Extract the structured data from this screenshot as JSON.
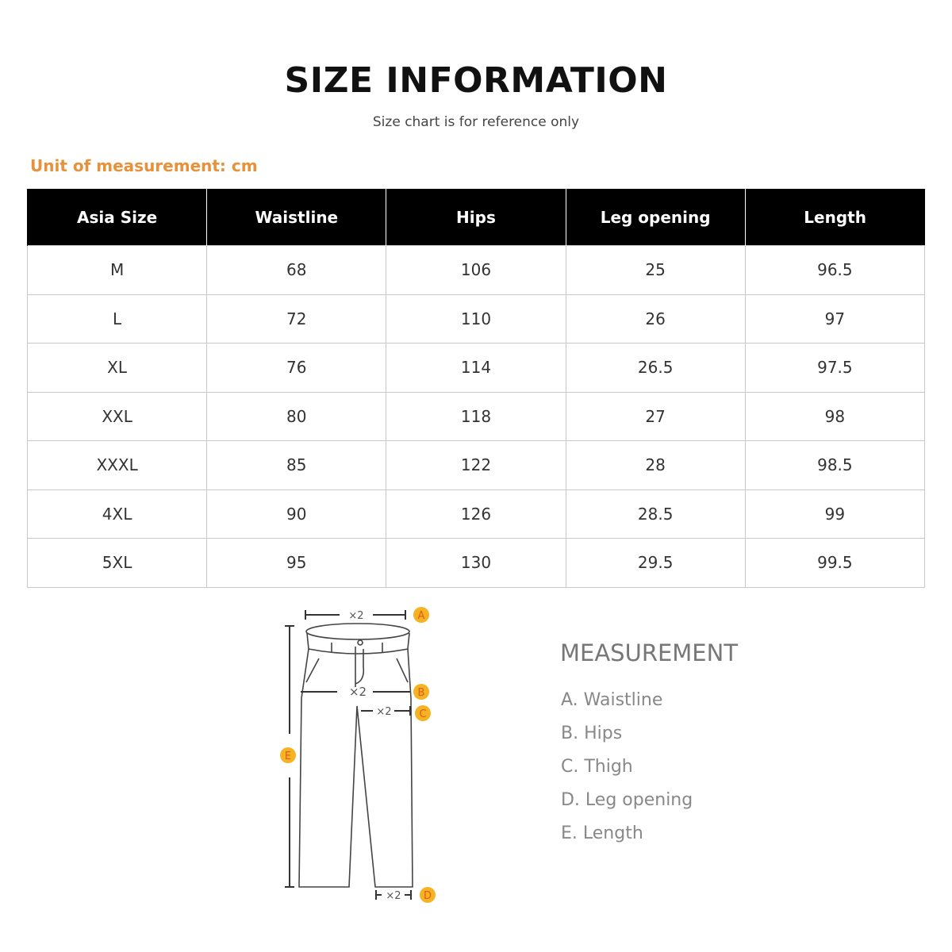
{
  "header": {
    "title": "SIZE INFORMATION",
    "subtitle": "Size chart is for reference only"
  },
  "unit_label": "Unit of measurement: cm",
  "table": {
    "columns": [
      "Asia Size",
      "Waistline",
      "Hips",
      "Leg opening",
      "Length"
    ],
    "rows": [
      [
        "M",
        "68",
        "106",
        "25",
        "96.5"
      ],
      [
        "L",
        "72",
        "110",
        "26",
        "97"
      ],
      [
        "XL",
        "76",
        "114",
        "26.5",
        "97.5"
      ],
      [
        "XXL",
        "80",
        "118",
        "27",
        "98"
      ],
      [
        "XXXL",
        "85",
        "122",
        "28",
        "98.5"
      ],
      [
        "4XL",
        "90",
        "126",
        "28.5",
        "99"
      ],
      [
        "5XL",
        "95",
        "130",
        "29.5",
        "99.5"
      ]
    ],
    "header_bg": "#000000"
  },
  "diagram": {
    "multiplier": "×2",
    "badges": [
      "A",
      "B",
      "C",
      "D",
      "E"
    ],
    "badge_color": "#f5b324",
    "badge_text_color": "#e25a1c"
  },
  "measurement": {
    "title": "MEASUREMENT",
    "items": [
      "A. Waistline",
      "B. Hips",
      "C. Thigh",
      "D. Leg opening",
      "E. Length"
    ]
  },
  "accent_color": "#e8913a"
}
